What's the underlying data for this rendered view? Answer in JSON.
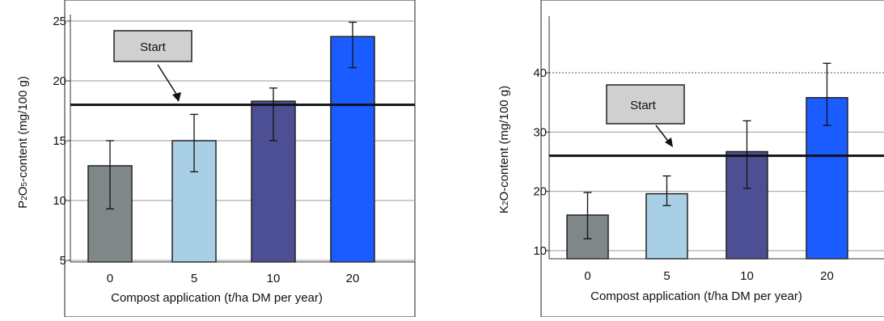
{
  "chart_data": [
    {
      "type": "bar",
      "categories": [
        "0",
        "5",
        "10",
        "20"
      ],
      "values": [
        12.9,
        15.0,
        18.3,
        23.7
      ],
      "error_low": [
        9.3,
        12.4,
        15.0,
        21.1
      ],
      "error_high": [
        15.0,
        17.2,
        19.4,
        24.9
      ],
      "bar_colors": [
        "#7f8788",
        "#a9cfe6",
        "#4d4f94",
        "#1a5cff"
      ],
      "reference_line": {
        "label": "Start",
        "value": 18.0
      },
      "xlabel": "Compost application (t/ha DM per year)",
      "ylabel": "P2O5-content (mg/100 g)",
      "yticks": [
        5,
        10,
        15,
        20,
        25
      ],
      "ylim": [
        5,
        25
      ],
      "grid": "horizontal"
    },
    {
      "type": "bar",
      "categories": [
        "0",
        "5",
        "10",
        "20"
      ],
      "values": [
        16.0,
        19.6,
        26.7,
        35.8
      ],
      "error_low": [
        12.0,
        17.6,
        20.5,
        31.1
      ],
      "error_high": [
        19.8,
        22.6,
        31.9,
        41.6
      ],
      "bar_colors": [
        "#7f8788",
        "#a9cfe6",
        "#4d4f94",
        "#1a5cff"
      ],
      "reference_line": {
        "label": "Start",
        "value": 26.0
      },
      "xlabel": "Compost application (t/ha DM per year)",
      "ylabel": "K2O-content (mg/100 g)",
      "yticks": [
        10,
        20,
        30,
        40
      ],
      "ylim": [
        9,
        50
      ],
      "grid": "horizontal"
    }
  ]
}
